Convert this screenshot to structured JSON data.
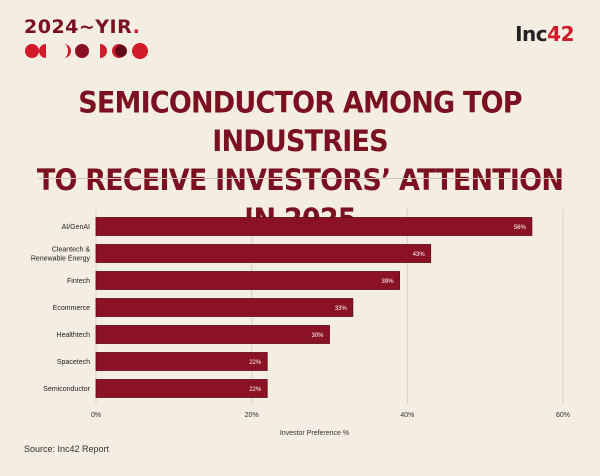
{
  "header": {
    "badge_text": "2024~YIR",
    "badge_dot": ".",
    "brand_text": "Inc",
    "brand_num": "42",
    "headline_line1": "SEMICONDUCTOR AMONG TOP INDUSTRIES",
    "headline_line2": "TO RECEIVE INVESTORS’ ATTENTION IN 2025"
  },
  "colors": {
    "bar": "#8b1225",
    "bar_stroke": "#5e0a18",
    "headline": "#7a1020",
    "accent": "#d11a2a",
    "grid": "#d9cfc2"
  },
  "chart_data": {
    "type": "bar",
    "orientation": "horizontal",
    "categories": [
      "AI/GenAI",
      "Cleantech & Renewable Energy",
      "Fintech",
      "Ecommerce",
      "Healthtech",
      "Spacetech",
      "Semiconductor"
    ],
    "category_lines": [
      [
        "AI/GenAI"
      ],
      [
        "Cleantech &",
        "Renewable Energy"
      ],
      [
        "Fintech"
      ],
      [
        "Ecommerce"
      ],
      [
        "Healthtech"
      ],
      [
        "Spacetech"
      ],
      [
        "Semiconductor"
      ]
    ],
    "values": [
      56,
      43,
      39,
      33,
      30,
      22,
      22
    ],
    "value_labels": [
      "56%",
      "43%",
      "39%",
      "33%",
      "30%",
      "22%",
      "22%"
    ],
    "xlabel": "Investor Preference %",
    "xlim": [
      0,
      60
    ],
    "xticks": [
      0,
      20,
      40,
      60
    ],
    "xtick_labels": [
      "0%",
      "20%",
      "40%",
      "60%"
    ],
    "grid": true
  },
  "footer": {
    "source": "Source: Inc42 Report"
  }
}
